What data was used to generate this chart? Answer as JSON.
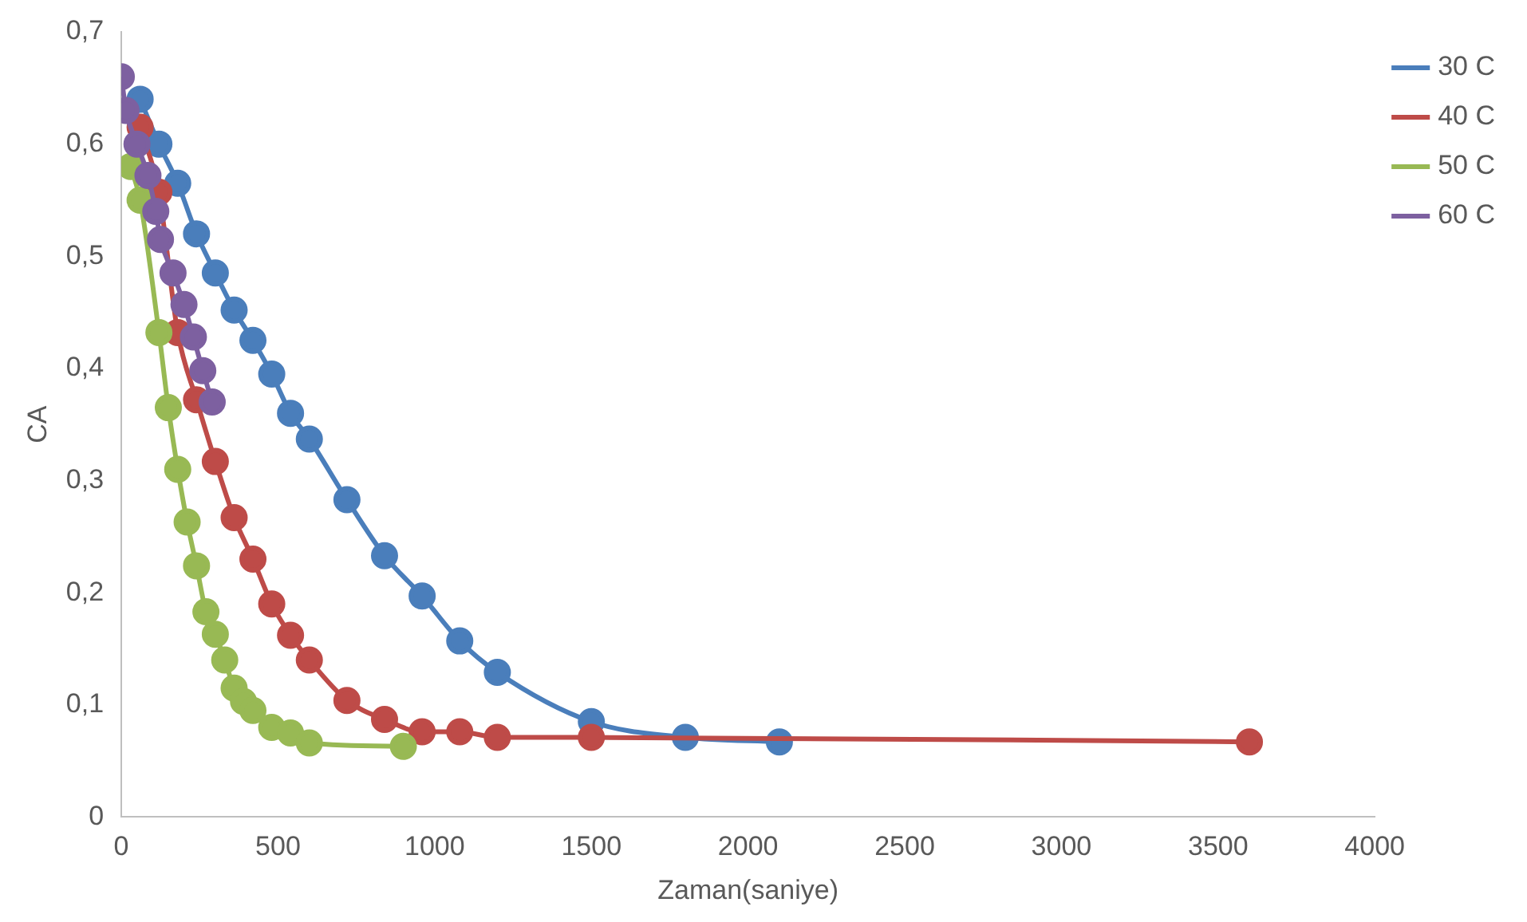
{
  "chart_data": {
    "type": "line",
    "xlabel": "Zaman(saniye)",
    "ylabel": "CA",
    "xlim": [
      0,
      4000
    ],
    "xticks": [
      0,
      500,
      1000,
      1500,
      2000,
      2500,
      3000,
      3500,
      4000
    ],
    "ylim": [
      0,
      0.7
    ],
    "yticks": [
      0,
      {
        "value": 0.1,
        "label": "0,1"
      },
      {
        "value": 0.2,
        "label": "0,2"
      },
      {
        "value": 0.3,
        "label": "0,3"
      },
      {
        "value": 0.4,
        "label": "0,4"
      },
      {
        "value": 0.5,
        "label": "0,5"
      },
      {
        "value": 0.6,
        "label": "0,6"
      },
      {
        "value": 0.7,
        "label": "0,7"
      }
    ],
    "grid": false,
    "legend": "top right",
    "marker": "circle",
    "line_style": "solid",
    "series": [
      {
        "name": "30 C",
        "color": "#4a7ebb",
        "x": [
          60,
          120,
          180,
          240,
          300,
          360,
          420,
          480,
          540,
          600,
          720,
          840,
          960,
          1080,
          1200,
          1500,
          1800,
          2100
        ],
        "values": [
          0.64,
          0.6,
          0.565,
          0.52,
          0.485,
          0.452,
          0.425,
          0.395,
          0.36,
          0.337,
          0.283,
          0.233,
          0.197,
          0.157,
          0.129,
          0.085,
          0.071,
          0.067
        ]
      },
      {
        "name": "40 C",
        "color": "#be4b48",
        "x": [
          60,
          120,
          180,
          240,
          300,
          360,
          420,
          480,
          540,
          600,
          720,
          840,
          960,
          1080,
          1200,
          1500,
          3600
        ],
        "values": [
          0.615,
          0.557,
          0.432,
          0.372,
          0.317,
          0.267,
          0.23,
          0.19,
          0.162,
          0.14,
          0.104,
          0.087,
          0.076,
          0.076,
          0.071,
          0.071,
          0.067
        ]
      },
      {
        "name": "50 C",
        "color": "#98b954",
        "x": [
          30,
          60,
          120,
          150,
          180,
          210,
          240,
          270,
          300,
          330,
          360,
          390,
          420,
          480,
          540,
          600,
          900
        ],
        "values": [
          0.58,
          0.55,
          0.432,
          0.365,
          0.31,
          0.263,
          0.224,
          0.183,
          0.163,
          0.14,
          0.115,
          0.103,
          0.095,
          0.08,
          0.075,
          0.066,
          0.063
        ]
      },
      {
        "name": "60 C",
        "color": "#7d60a0",
        "x": [
          0,
          15,
          50,
          85,
          110,
          125,
          165,
          200,
          230,
          260,
          290
        ],
        "values": [
          0.66,
          0.63,
          0.6,
          0.572,
          0.54,
          0.515,
          0.485,
          0.457,
          0.428,
          0.398,
          0.37
        ]
      }
    ]
  }
}
